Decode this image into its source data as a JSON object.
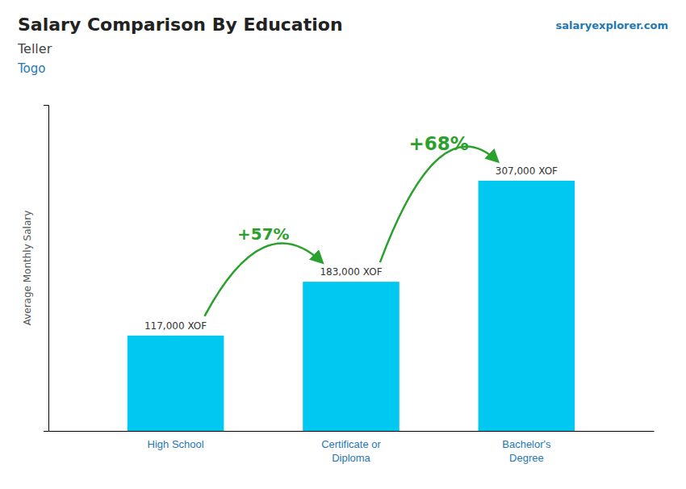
{
  "chart_data": {
    "type": "bar",
    "title": "Salary Comparison By Education",
    "subtitle": [
      "Teller",
      "Togo"
    ],
    "ylabel": "Average Monthly Salary",
    "annotations": [
      "+57%",
      "+68%",
      "salaryexplorer.com"
    ],
    "categories": [
      "High School",
      "Certificate or\nDiploma",
      "Bachelor's\nDegree"
    ],
    "values": [
      117000,
      183000,
      307000
    ],
    "value_labels": [
      "117,000 XOF",
      "183,000 XOF",
      "307,000 XOF"
    ],
    "data_labels": true,
    "color": "#00C8F0",
    "ylim": [
      0,
      400000
    ],
    "tick_labels": "x",
    "grid": false
  }
}
